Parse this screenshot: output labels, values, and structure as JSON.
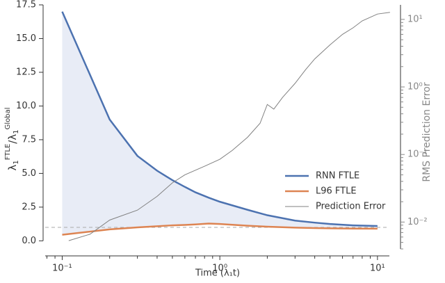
{
  "chart_data": {
    "type": "line",
    "xlabel": "Time (λ₁t)",
    "ylabel": [
      "λ",
      "1",
      "FTLE",
      "/λ",
      "1",
      "Global"
    ],
    "y2label": "RMS Prediction Error",
    "xscale": "log",
    "y2scale": "log",
    "xlim": [
      0.078,
      11.9
    ],
    "xticks": [
      {
        "value": 0.1,
        "label": "10⁻¹"
      },
      {
        "value": 1,
        "label": "10⁰"
      },
      {
        "value": 10,
        "label": "10¹"
      }
    ],
    "ylim": [
      -0.6,
      17.5
    ],
    "yticks": [
      {
        "value": 0,
        "label": "0.0"
      },
      2.5,
      {
        "value": 5,
        "label": "5.0"
      },
      7.5,
      {
        "value": 10,
        "label": "10.0"
      },
      12.5,
      {
        "value": 15,
        "label": "15.0"
      },
      17.5
    ],
    "y2lim": [
      0.004,
      16.4
    ],
    "y2ticks": [
      {
        "value": 0.01,
        "label": "10⁻²"
      },
      {
        "value": 0.1,
        "label": "10⁻¹"
      },
      {
        "value": 1,
        "label": "10⁰"
      },
      {
        "value": 10,
        "label": "10¹"
      }
    ],
    "hline": 1,
    "fill_color": "#e8ecf6",
    "legend": "right",
    "series": [
      {
        "name": "RNN FTLE",
        "color": "#4c72b0",
        "x": [
          0.1,
          0.2,
          0.3,
          0.4,
          0.5,
          0.6,
          0.7,
          0.85,
          1,
          1.5,
          2,
          3,
          4,
          5,
          7,
          10
        ],
        "values": [
          17,
          9.0,
          6.3,
          5.2,
          4.5,
          4.0,
          3.6,
          3.2,
          2.9,
          2.3,
          1.9,
          1.5,
          1.35,
          1.25,
          1.15,
          1.1
        ]
      },
      {
        "name": "L96 FTLE",
        "color": "#dd8452",
        "x": [
          0.1,
          0.2,
          0.3,
          0.4,
          0.5,
          0.6,
          0.7,
          0.85,
          1,
          1.5,
          2,
          3,
          4,
          5,
          7,
          10
        ],
        "values": [
          0.45,
          0.85,
          1.0,
          1.08,
          1.15,
          1.18,
          1.22,
          1.28,
          1.25,
          1.12,
          1.05,
          0.98,
          0.95,
          0.93,
          0.91,
          0.9
        ]
      },
      {
        "name": "Prediction Error",
        "color": "#808080",
        "axis": "y2",
        "x": [
          0.11,
          0.15,
          0.2,
          0.3,
          0.4,
          0.5,
          0.6,
          0.8,
          1.0,
          1.2,
          1.5,
          1.8,
          2.0,
          2.2,
          2.5,
          3,
          3.5,
          4,
          5,
          6,
          7,
          8,
          10,
          12
        ],
        "values": [
          0.0053,
          0.0066,
          0.0107,
          0.015,
          0.024,
          0.038,
          0.05,
          0.067,
          0.085,
          0.115,
          0.18,
          0.29,
          0.55,
          0.47,
          0.7,
          1.13,
          1.8,
          2.6,
          4.2,
          6,
          7.5,
          9.5,
          12,
          12.7
        ]
      }
    ]
  }
}
